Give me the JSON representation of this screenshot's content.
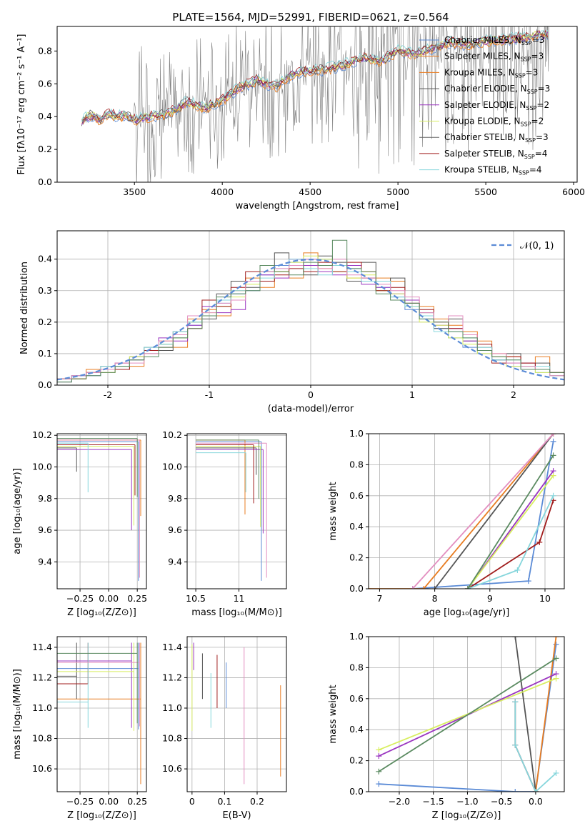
{
  "figure": {
    "title": "PLATE=1564, MJD=52991, FIBERID=0621, z=0.564"
  },
  "colors": {
    "spectrum": "#808080",
    "grid": "#b0b0b0",
    "normal_curve": "#5b8bd6"
  },
  "chart_data": [
    {
      "id": "spectrum",
      "type": "line",
      "title": "PLATE=1564, MJD=52991, FIBERID=0621, z=0.564",
      "xlabel": "wavelength [Angstrom, rest frame]",
      "ylabel": "Flux [fλ10⁻¹⁷ erg cm⁻² s⁻¹ A⁻¹]",
      "xlim": [
        3060,
        6020
      ],
      "ylim": [
        0,
        0.95
      ],
      "xticks": [
        3500,
        4000,
        4500,
        5000,
        5500,
        6000
      ],
      "yticks": [
        0.0,
        0.2,
        0.4,
        0.6,
        0.8
      ],
      "grid": false,
      "legend_placement": "top-right",
      "data_points": [
        [
          3200,
          0.37
        ],
        [
          3250,
          0.41
        ],
        [
          3300,
          0.38
        ],
        [
          3350,
          0.42
        ],
        [
          3400,
          0.4
        ],
        [
          3450,
          0.41
        ],
        [
          3500,
          0.38
        ],
        [
          3600,
          0.4
        ],
        [
          3700,
          0.42
        ],
        [
          3800,
          0.49
        ],
        [
          3900,
          0.45
        ],
        [
          4000,
          0.5
        ],
        [
          4100,
          0.58
        ],
        [
          4200,
          0.62
        ],
        [
          4300,
          0.58
        ],
        [
          4400,
          0.66
        ],
        [
          4500,
          0.68
        ],
        [
          4600,
          0.69
        ],
        [
          4700,
          0.72
        ],
        [
          4800,
          0.76
        ],
        [
          4900,
          0.74
        ],
        [
          5000,
          0.8
        ],
        [
          5100,
          0.78
        ],
        [
          5200,
          0.82
        ],
        [
          5300,
          0.85
        ],
        [
          5400,
          0.84
        ],
        [
          5500,
          0.86
        ],
        [
          5600,
          0.87
        ],
        [
          5700,
          0.88
        ],
        [
          5800,
          0.9
        ],
        [
          5860,
          0.89
        ]
      ],
      "legend": [
        {
          "label": "Chabrier MILES, N_SSP=3",
          "color": "#5b8bd6"
        },
        {
          "label": "Salpeter MILES, N_SSP=3",
          "color": "#e87d22"
        },
        {
          "label": "Kroupa MILES, N_SSP=3",
          "color": "#e87d22"
        },
        {
          "label": "Chabrier ELODIE, N_SSP=3",
          "color": "#555555"
        },
        {
          "label": "Salpeter ELODIE, N_SSP=2",
          "color": "#9a35c0"
        },
        {
          "label": "Kroupa ELODIE, N_SSP=2",
          "color": "#d8ee60"
        },
        {
          "label": "Chabrier STELIB, N_SSP=3",
          "color": "#666666"
        },
        {
          "label": "Salpeter STELIB, N_SSP=4",
          "color": "#a01c1c"
        },
        {
          "label": "Kroupa STELIB, N_SSP=4",
          "color": "#86d6dc"
        }
      ]
    },
    {
      "id": "residuals",
      "type": "line",
      "xlabel": "(data-model)/error",
      "ylabel": "Normed distribution",
      "xlim": [
        -2.5,
        2.5
      ],
      "ylim": [
        0,
        0.49
      ],
      "xticks": [
        -2,
        -1,
        0,
        1,
        2
      ],
      "yticks": [
        0.0,
        0.1,
        0.2,
        0.3,
        0.4
      ],
      "grid": true,
      "legend_placement": "top-right",
      "legend_label": "𝒩(0, 1)",
      "series": [
        {
          "color": "#5b8bd6",
          "values": [
            0.02,
            0.03,
            0.04,
            0.05,
            0.06,
            0.08,
            0.1,
            0.13,
            0.15,
            0.19,
            0.22,
            0.26,
            0.29,
            0.33,
            0.35,
            0.38,
            0.39,
            0.4,
            0.4,
            0.38,
            0.37,
            0.34,
            0.31,
            0.28,
            0.24,
            0.21,
            0.18,
            0.15,
            0.12,
            0.1,
            0.08,
            0.06,
            0.05,
            0.04,
            0.03
          ]
        },
        {
          "color": "#e87d22",
          "values": [
            0.01,
            0.02,
            0.05,
            0.04,
            0.07,
            0.06,
            0.11,
            0.14,
            0.12,
            0.21,
            0.24,
            0.22,
            0.3,
            0.34,
            0.31,
            0.36,
            0.34,
            0.42,
            0.37,
            0.38,
            0.34,
            0.36,
            0.34,
            0.33,
            0.27,
            0.25,
            0.21,
            0.19,
            0.17,
            0.14,
            0.1,
            0.09,
            0.07,
            0.09,
            0.04
          ]
        },
        {
          "color": "#555555",
          "values": [
            0.02,
            0.03,
            0.04,
            0.06,
            0.05,
            0.09,
            0.12,
            0.11,
            0.17,
            0.2,
            0.21,
            0.29,
            0.33,
            0.31,
            0.36,
            0.42,
            0.38,
            0.35,
            0.41,
            0.39,
            0.33,
            0.39,
            0.3,
            0.34,
            0.26,
            0.23,
            0.18,
            0.21,
            0.14,
            0.12,
            0.08,
            0.1,
            0.06,
            0.07,
            0.04
          ]
        },
        {
          "color": "#9a35c0",
          "values": [
            0.01,
            0.03,
            0.03,
            0.05,
            0.07,
            0.08,
            0.1,
            0.15,
            0.14,
            0.19,
            0.25,
            0.23,
            0.24,
            0.3,
            0.35,
            0.34,
            0.4,
            0.38,
            0.36,
            0.35,
            0.38,
            0.32,
            0.31,
            0.29,
            0.27,
            0.22,
            0.19,
            0.18,
            0.14,
            0.11,
            0.09,
            0.07,
            0.07,
            0.05,
            0.03
          ]
        },
        {
          "color": "#d8ee60",
          "values": [
            0.02,
            0.02,
            0.04,
            0.04,
            0.06,
            0.09,
            0.1,
            0.13,
            0.15,
            0.2,
            0.23,
            0.25,
            0.28,
            0.32,
            0.33,
            0.36,
            0.39,
            0.41,
            0.4,
            0.36,
            0.34,
            0.35,
            0.3,
            0.29,
            0.25,
            0.2,
            0.19,
            0.15,
            0.13,
            0.1,
            0.09,
            0.06,
            0.06,
            0.04,
            0.03
          ]
        },
        {
          "color": "#a01c1c",
          "values": [
            0.02,
            0.02,
            0.04,
            0.05,
            0.05,
            0.08,
            0.11,
            0.12,
            0.16,
            0.18,
            0.27,
            0.25,
            0.31,
            0.36,
            0.33,
            0.35,
            0.37,
            0.36,
            0.39,
            0.36,
            0.39,
            0.34,
            0.3,
            0.31,
            0.26,
            0.24,
            0.2,
            0.18,
            0.16,
            0.13,
            0.07,
            0.09,
            0.07,
            0.05,
            0.04
          ]
        },
        {
          "color": "#86d6dc",
          "values": [
            0.01,
            0.03,
            0.03,
            0.06,
            0.06,
            0.08,
            0.12,
            0.13,
            0.17,
            0.2,
            0.22,
            0.27,
            0.3,
            0.3,
            0.34,
            0.37,
            0.4,
            0.37,
            0.35,
            0.38,
            0.36,
            0.33,
            0.33,
            0.28,
            0.25,
            0.22,
            0.17,
            0.17,
            0.15,
            0.12,
            0.08,
            0.08,
            0.06,
            0.06,
            0.03
          ]
        },
        {
          "color": "#e38fc0",
          "values": [
            0.02,
            0.03,
            0.04,
            0.05,
            0.07,
            0.07,
            0.1,
            0.14,
            0.16,
            0.22,
            0.23,
            0.26,
            0.27,
            0.33,
            0.36,
            0.37,
            0.38,
            0.4,
            0.37,
            0.4,
            0.35,
            0.34,
            0.32,
            0.3,
            0.28,
            0.23,
            0.2,
            0.22,
            0.16,
            0.11,
            0.1,
            0.07,
            0.06,
            0.05,
            0.03
          ]
        },
        {
          "color": "#5a8a60",
          "values": [
            0.01,
            0.02,
            0.03,
            0.04,
            0.06,
            0.08,
            0.09,
            0.12,
            0.15,
            0.18,
            0.22,
            0.28,
            0.29,
            0.3,
            0.38,
            0.36,
            0.35,
            0.39,
            0.38,
            0.46,
            0.37,
            0.36,
            0.29,
            0.27,
            0.26,
            0.21,
            0.2,
            0.17,
            0.15,
            0.11,
            0.09,
            0.08,
            0.05,
            0.05,
            0.04
          ]
        }
      ],
      "normal_curve": true
    },
    {
      "id": "age_vs_Z",
      "type": "scatter",
      "xlabel": "Z [log₁₀(Z/Z⊙)]",
      "ylabel": "age  [log₁₀(age/yr)]",
      "xlim": [
        -0.45,
        0.33
      ],
      "ylim": [
        9.23,
        10.21
      ],
      "xticks": [
        -0.25,
        0.0,
        0.25
      ],
      "xtick_labels": [
        "−0.25",
        "0.00",
        "0.25"
      ],
      "yticks": [
        9.4,
        9.6,
        9.8,
        10.0,
        10.2
      ],
      "grid": true
    },
    {
      "id": "age_vs_mass",
      "type": "scatter",
      "xlabel": "mass [log₁₀(M/M⊙)]",
      "xlim": [
        10.4,
        11.55
      ],
      "ylim": [
        9.23,
        10.21
      ],
      "xticks": [
        10.5,
        11.0
      ],
      "yticks": [
        9.4,
        9.6,
        9.8,
        10.0,
        10.2
      ],
      "grid": true
    },
    {
      "id": "mass_weight_vs_age",
      "type": "line",
      "xlabel": "age  [log₁₀(age/yr)]",
      "ylabel": "mass weight",
      "xlim": [
        6.8,
        10.35
      ],
      "ylim": [
        0,
        1.0
      ],
      "xticks": [
        7,
        8,
        9,
        10
      ],
      "yticks": [
        0.0,
        0.2,
        0.4,
        0.6,
        0.8,
        1.0
      ],
      "grid": true,
      "series": [
        {
          "color": "#5b8bd6",
          "x": [
            7.6,
            9.7,
            10.15
          ],
          "y": [
            0.0,
            0.05,
            0.95
          ]
        },
        {
          "color": "#e87d22",
          "x": [
            6.8,
            7.8,
            10.15
          ],
          "y": [
            0.0,
            0.0,
            1.0
          ]
        },
        {
          "color": "#555555",
          "x": [
            8.0,
            10.15
          ],
          "y": [
            0.0,
            1.0
          ]
        },
        {
          "color": "#9a35c0",
          "x": [
            8.6,
            10.15
          ],
          "y": [
            0.0,
            0.76
          ]
        },
        {
          "color": "#d8ee60",
          "x": [
            8.6,
            10.15
          ],
          "y": [
            0.0,
            0.73
          ]
        },
        {
          "color": "#a01c1c",
          "x": [
            8.6,
            9.9,
            10.15
          ],
          "y": [
            0.0,
            0.3,
            0.57
          ]
        },
        {
          "color": "#86d6dc",
          "x": [
            8.6,
            9.5,
            10.15
          ],
          "y": [
            0.0,
            0.12,
            0.6
          ]
        },
        {
          "color": "#e38fc0",
          "x": [
            7.6,
            10.15
          ],
          "y": [
            0.0,
            1.0
          ]
        },
        {
          "color": "#5a8a60",
          "x": [
            8.6,
            10.15
          ],
          "y": [
            0.0,
            0.86
          ]
        }
      ]
    },
    {
      "id": "mass_vs_Z",
      "type": "scatter",
      "xlabel": "Z [log₁₀(Z/Z⊙)]",
      "ylabel": "mass [log₁₀(M/M⊙)]",
      "xlim": [
        -0.45,
        0.33
      ],
      "ylim": [
        10.45,
        11.47
      ],
      "xticks": [
        -0.25,
        0.0,
        0.25
      ],
      "xtick_labels": [
        "−0.25",
        "0.00",
        "0.25"
      ],
      "yticks": [
        10.6,
        10.8,
        11.0,
        11.2,
        11.4
      ],
      "grid": true
    },
    {
      "id": "mass_vs_ebv",
      "type": "scatter",
      "xlabel": "E(B-V)",
      "xlim": [
        -0.015,
        0.29
      ],
      "ylim": [
        10.45,
        11.47
      ],
      "xticks": [
        0.0,
        0.1,
        0.2
      ],
      "yticks": [
        10.6,
        10.8,
        11.0,
        11.2,
        11.4
      ],
      "grid": true,
      "points": [
        {
          "x": 0.0,
          "ymin": 10.85,
          "ymax": 11.42,
          "color": "#d8ee60"
        },
        {
          "x": 0.005,
          "ymin": 11.25,
          "ymax": 11.43,
          "color": "#9a35c0"
        },
        {
          "x": 0.032,
          "ymin": 11.06,
          "ymax": 11.36,
          "color": "#555555"
        },
        {
          "x": 0.058,
          "ymin": 10.87,
          "ymax": 11.23,
          "color": "#86d6dc"
        },
        {
          "x": 0.077,
          "ymin": 11.0,
          "ymax": 11.35,
          "color": "#a01c1c"
        },
        {
          "x": 0.105,
          "ymin": 11.0,
          "ymax": 11.3,
          "color": "#5b8bd6"
        },
        {
          "x": 0.16,
          "ymin": 10.5,
          "ymax": 11.4,
          "color": "#e38fc0"
        },
        {
          "x": 0.272,
          "ymin": 10.55,
          "ymax": 11.15,
          "color": "#e87d22"
        }
      ]
    },
    {
      "id": "mass_weight_vs_Z",
      "type": "line",
      "xlabel": "Z [log₁₀(Z/Z⊙)]",
      "ylabel": "mass weight",
      "xlim": [
        -2.45,
        0.42
      ],
      "ylim": [
        0,
        1.0
      ],
      "xticks": [
        -2.0,
        -1.5,
        -1.0,
        -0.5,
        0.0
      ],
      "xtick_labels": [
        "−2.0",
        "−1.5",
        "−1.0",
        "−0.5",
        "0.0"
      ],
      "yticks": [
        0.0,
        0.2,
        0.4,
        0.6,
        0.8,
        1.0
      ],
      "grid": true,
      "series": [
        {
          "color": "#5b8bd6",
          "x": [
            -2.3,
            -0.3,
            0.0,
            0.3
          ],
          "y": [
            0.05,
            0.0,
            0.0,
            0.95
          ]
        },
        {
          "color": "#e87d22",
          "x": [
            0.0,
            0.3
          ],
          "y": [
            0.0,
            1.0
          ]
        },
        {
          "color": "#555555",
          "x": [
            -0.3,
            0.0
          ],
          "y": [
            1.0,
            0.0
          ]
        },
        {
          "color": "#9a35c0",
          "x": [
            -2.3,
            0.3
          ],
          "y": [
            0.23,
            0.76
          ]
        },
        {
          "color": "#d8ee60",
          "x": [
            -2.3,
            0.3
          ],
          "y": [
            0.27,
            0.73
          ]
        },
        {
          "color": "#a01c1c",
          "x": [
            -0.3,
            -0.3,
            0.0
          ],
          "y": [
            0.58,
            0.3,
            0.0
          ]
        },
        {
          "color": "#86d6dc",
          "x": [
            -0.3,
            -0.3,
            0.0,
            0.3
          ],
          "y": [
            0.58,
            0.3,
            0.0,
            0.12
          ]
        },
        {
          "color": "#5a8a60",
          "x": [
            -2.3,
            0.3
          ],
          "y": [
            0.13,
            0.86
          ]
        }
      ]
    }
  ]
}
